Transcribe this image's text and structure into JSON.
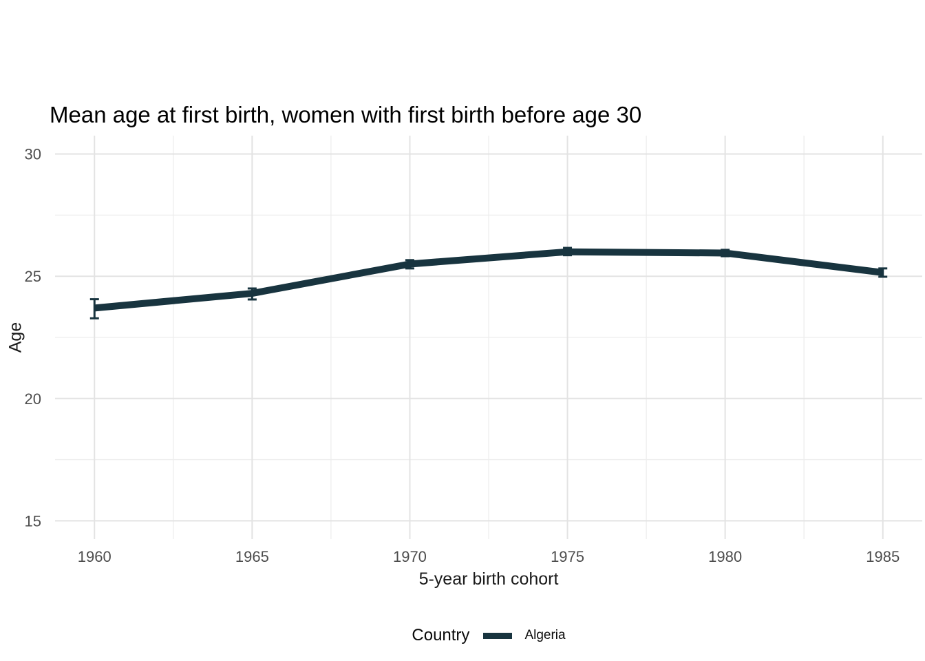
{
  "chart_data": {
    "type": "line",
    "title": "Mean age at first birth, women with first birth before age 30",
    "xlabel": "5-year birth cohort",
    "ylabel": "Age",
    "x": [
      1960,
      1965,
      1970,
      1975,
      1980,
      1985
    ],
    "series": [
      {
        "name": "Algeria",
        "color": "#18343F",
        "values": [
          23.7,
          24.3,
          25.5,
          26.0,
          25.95,
          25.15
        ],
        "ci_low": [
          23.28,
          24.05,
          25.32,
          25.86,
          25.82,
          24.98
        ],
        "ci_high": [
          24.06,
          24.5,
          25.66,
          26.16,
          26.08,
          25.32
        ]
      }
    ],
    "xticks": [
      1960,
      1965,
      1970,
      1975,
      1980,
      1985
    ],
    "yticks": [
      15,
      20,
      25,
      30
    ],
    "xlim": [
      1958.75,
      1986.25
    ],
    "ylim": [
      14.25,
      30.75
    ],
    "grid": "on",
    "minor_grid": "on",
    "legend_position": "bottom",
    "legend": {
      "title": "Country",
      "entries": [
        {
          "label": "Algeria",
          "color": "#18343F"
        }
      ]
    },
    "colors": {
      "background": "#FFFFFF",
      "grid_major": "#E3E3E3",
      "grid_minor": "#EDEDED",
      "tick_label": "#4D4D4D",
      "title_text": "#000000",
      "axis_title_text": "#1A1A1A",
      "series_algeria": "#18343F"
    }
  }
}
